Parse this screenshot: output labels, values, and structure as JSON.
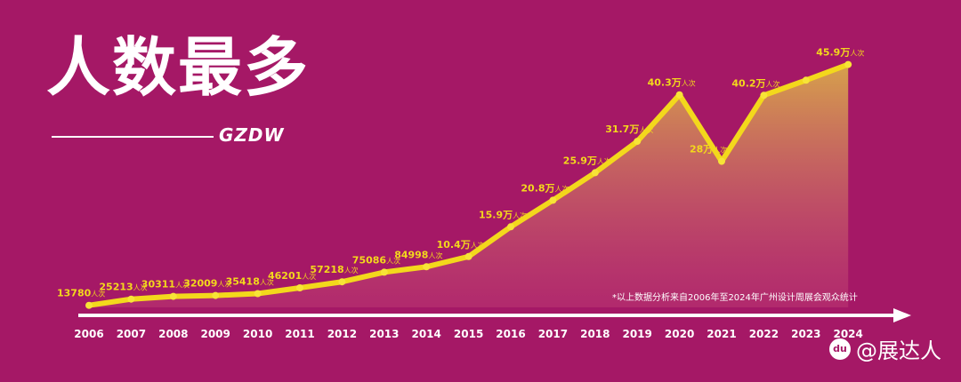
{
  "header": {
    "title": "人数最多",
    "brand": "GZDW"
  },
  "note": "*以上数据分析来自2006年至2024年广州设计周展会观众统计",
  "watermark": {
    "icon": "du",
    "text": "@展达人"
  },
  "colors": {
    "background": "#a51866",
    "line": "#f3d81c",
    "label": "#f3d81c",
    "axis_text": "#ffffff"
  },
  "chart_data": {
    "type": "area",
    "title": "人数最多",
    "xlabel": "",
    "ylabel": "",
    "grid": false,
    "ylim": [
      0,
      460000
    ],
    "categories": [
      "2006",
      "2007",
      "2008",
      "2009",
      "2010",
      "2011",
      "2012",
      "2013",
      "2014",
      "2015",
      "2016",
      "2017",
      "2018",
      "2019",
      "2020",
      "2021",
      "2022",
      "2023",
      "2024"
    ],
    "series": [
      {
        "values": [
          13780,
          25213,
          30311,
          32009,
          35418,
          46201,
          57218,
          75086,
          84998,
          104000,
          159000,
          208000,
          259000,
          317000,
          403000,
          280000,
          402000,
          430000,
          459000
        ],
        "labels": [
          "13780",
          "25213",
          "30311",
          "32009",
          "35418",
          "46201",
          "57218",
          "75086",
          "84998",
          "10.4万",
          "15.9万",
          "20.8万",
          "25.9万",
          "31.7万",
          "40.3万",
          "28万",
          "40.2万",
          "",
          "45.9万"
        ]
      }
    ],
    "unit": "人次"
  }
}
